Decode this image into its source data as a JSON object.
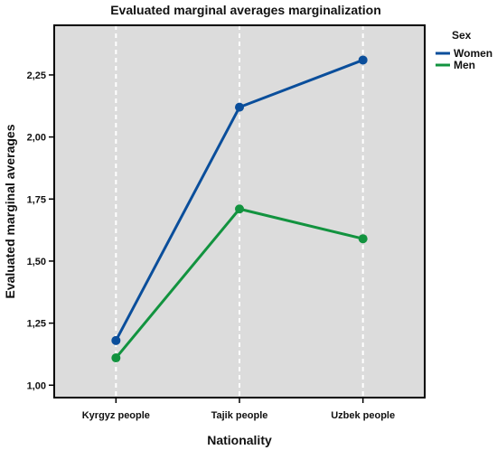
{
  "chart_data": {
    "type": "line",
    "title": "Evaluated marginal averages marginalization",
    "xlabel": "Nationality",
    "ylabel": "Evaluated marginal averages",
    "categories": [
      "Kyrgyz people",
      "Tajik people",
      "Uzbek people"
    ],
    "ylim": [
      0.95,
      2.45
    ],
    "yticks": [
      "1,00",
      "1,25",
      "1,50",
      "1,75",
      "2,00",
      "2,25"
    ],
    "ytick_values": [
      1.0,
      1.25,
      1.5,
      1.75,
      2.0,
      2.25
    ],
    "legend": {
      "title": "Sex",
      "placement": "right-outside"
    },
    "series": [
      {
        "name": "Women",
        "color": "#0a4e9b",
        "values": [
          1.18,
          2.12,
          2.31
        ]
      },
      {
        "name": "Men",
        "color": "#12933f",
        "values": [
          1.11,
          1.71,
          1.59
        ]
      }
    ],
    "plot_background": "#dcdcdc",
    "vertical_gridlines": "dashed-white"
  }
}
